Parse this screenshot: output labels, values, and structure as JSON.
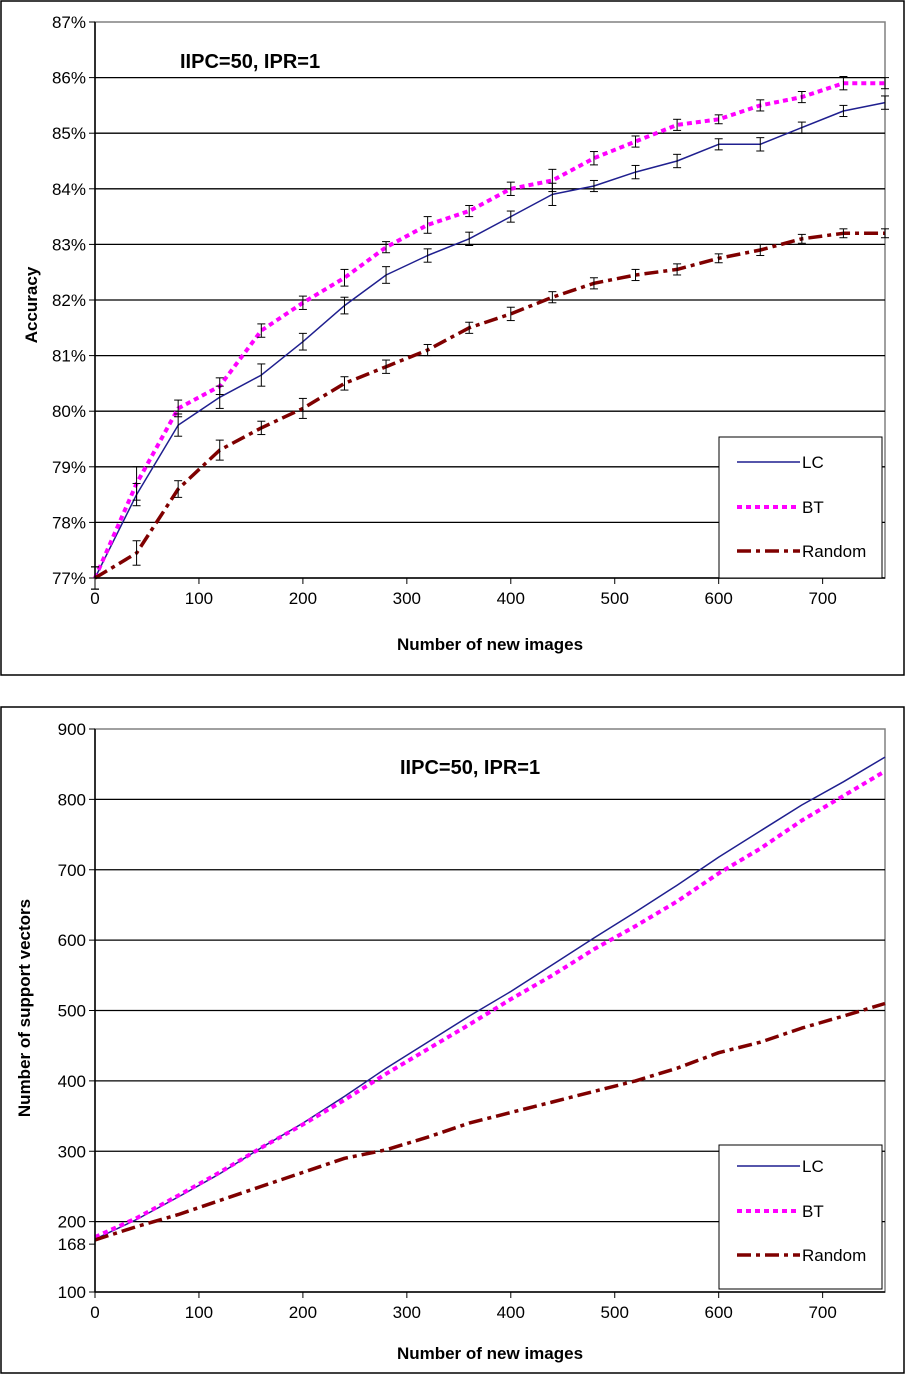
{
  "chart_data": [
    {
      "type": "line",
      "annotation": "IIPC=50,   IPR=1",
      "xlabel": "Number of new images",
      "ylabel": "Accuracy",
      "xlim": [
        0,
        760
      ],
      "ylim": [
        77,
        87
      ],
      "x_ticks": [
        "0",
        "100",
        "200",
        "300",
        "400",
        "500",
        "600",
        "700"
      ],
      "y_ticks": [
        "77%",
        "78%",
        "79%",
        "80%",
        "81%",
        "82%",
        "83%",
        "84%",
        "85%",
        "86%",
        "87%"
      ],
      "grid": "horizontal",
      "legend": "bottom-right",
      "error_bars": true,
      "series": [
        {
          "name": "LC",
          "color": "#1f1f8f",
          "style": "solid",
          "x": [
            0,
            40,
            80,
            120,
            160,
            200,
            240,
            280,
            320,
            360,
            400,
            440,
            480,
            520,
            560,
            600,
            640,
            680,
            720,
            760
          ],
          "values": [
            77.0,
            78.5,
            79.75,
            80.25,
            80.65,
            81.25,
            81.9,
            82.45,
            82.8,
            83.1,
            83.5,
            83.9,
            84.05,
            84.3,
            84.5,
            84.8,
            84.8,
            85.1,
            85.4,
            85.55
          ],
          "errors": [
            0.2,
            0.2,
            0.2,
            0.2,
            0.2,
            0.15,
            0.15,
            0.15,
            0.12,
            0.12,
            0.1,
            0.2,
            0.1,
            0.12,
            0.12,
            0.1,
            0.12,
            0.1,
            0.1,
            0.12
          ]
        },
        {
          "name": "BT",
          "color": "#ff00ff",
          "style": "dotted",
          "x": [
            0,
            40,
            80,
            120,
            160,
            200,
            240,
            280,
            320,
            360,
            400,
            440,
            480,
            520,
            560,
            600,
            640,
            680,
            720,
            760
          ],
          "values": [
            77.0,
            78.7,
            80.05,
            80.45,
            81.45,
            81.95,
            82.4,
            82.95,
            83.35,
            83.6,
            84.0,
            84.15,
            84.55,
            84.85,
            85.15,
            85.25,
            85.5,
            85.65,
            85.9,
            85.9
          ],
          "errors": [
            0.2,
            0.3,
            0.15,
            0.15,
            0.12,
            0.12,
            0.15,
            0.1,
            0.15,
            0.1,
            0.12,
            0.2,
            0.12,
            0.1,
            0.1,
            0.08,
            0.1,
            0.1,
            0.12,
            0.1
          ]
        },
        {
          "name": "Random",
          "color": "#7f0000",
          "style": "dash-dot",
          "x": [
            0,
            40,
            80,
            120,
            160,
            200,
            240,
            280,
            320,
            360,
            400,
            440,
            480,
            520,
            560,
            600,
            640,
            680,
            720,
            760
          ],
          "values": [
            77.0,
            77.45,
            78.6,
            79.3,
            79.7,
            80.05,
            80.5,
            80.8,
            81.1,
            81.5,
            81.75,
            82.05,
            82.3,
            82.45,
            82.55,
            82.75,
            82.9,
            83.1,
            83.2,
            83.2
          ],
          "errors": [
            0.2,
            0.22,
            0.15,
            0.18,
            0.12,
            0.18,
            0.12,
            0.12,
            0.1,
            0.1,
            0.12,
            0.1,
            0.1,
            0.1,
            0.1,
            0.08,
            0.1,
            0.08,
            0.08,
            0.08
          ]
        }
      ]
    },
    {
      "type": "line",
      "annotation": "IIPC=50,   IPR=1",
      "xlabel": "Number of new images",
      "ylabel": "Number of support vectors",
      "xlim": [
        0,
        760
      ],
      "ylim": [
        100,
        900
      ],
      "x_ticks": [
        "0",
        "100",
        "200",
        "300",
        "400",
        "500",
        "600",
        "700"
      ],
      "y_ticks": [
        "100",
        "168",
        "200",
        "300",
        "400",
        "500",
        "600",
        "700",
        "800",
        "900"
      ],
      "grid": "horizontal",
      "legend": "bottom-right",
      "series": [
        {
          "name": "LC",
          "color": "#1f1f8f",
          "style": "solid",
          "x": [
            0,
            40,
            80,
            120,
            160,
            200,
            240,
            280,
            320,
            360,
            400,
            440,
            480,
            520,
            560,
            600,
            640,
            680,
            720,
            760
          ],
          "values": [
            175,
            203,
            235,
            268,
            305,
            340,
            378,
            418,
            455,
            492,
            527,
            565,
            603,
            640,
            678,
            718,
            755,
            792,
            825,
            860
          ],
          "errors": []
        },
        {
          "name": "BT",
          "color": "#ff00ff",
          "style": "dotted",
          "x": [
            0,
            40,
            80,
            120,
            160,
            200,
            240,
            280,
            320,
            360,
            400,
            440,
            480,
            520,
            560,
            600,
            640,
            680,
            720,
            760
          ],
          "values": [
            178,
            205,
            237,
            270,
            305,
            338,
            373,
            410,
            445,
            480,
            516,
            550,
            587,
            620,
            655,
            695,
            730,
            770,
            805,
            840
          ],
          "errors": []
        },
        {
          "name": "Random",
          "color": "#7f0000",
          "style": "dash-dot",
          "x": [
            0,
            40,
            80,
            120,
            160,
            200,
            240,
            280,
            320,
            360,
            400,
            440,
            480,
            520,
            560,
            600,
            640,
            680,
            720,
            760
          ],
          "values": [
            174,
            193,
            210,
            230,
            250,
            270,
            290,
            302,
            320,
            340,
            355,
            370,
            385,
            400,
            418,
            440,
            455,
            475,
            492,
            510
          ],
          "errors": []
        }
      ]
    }
  ]
}
